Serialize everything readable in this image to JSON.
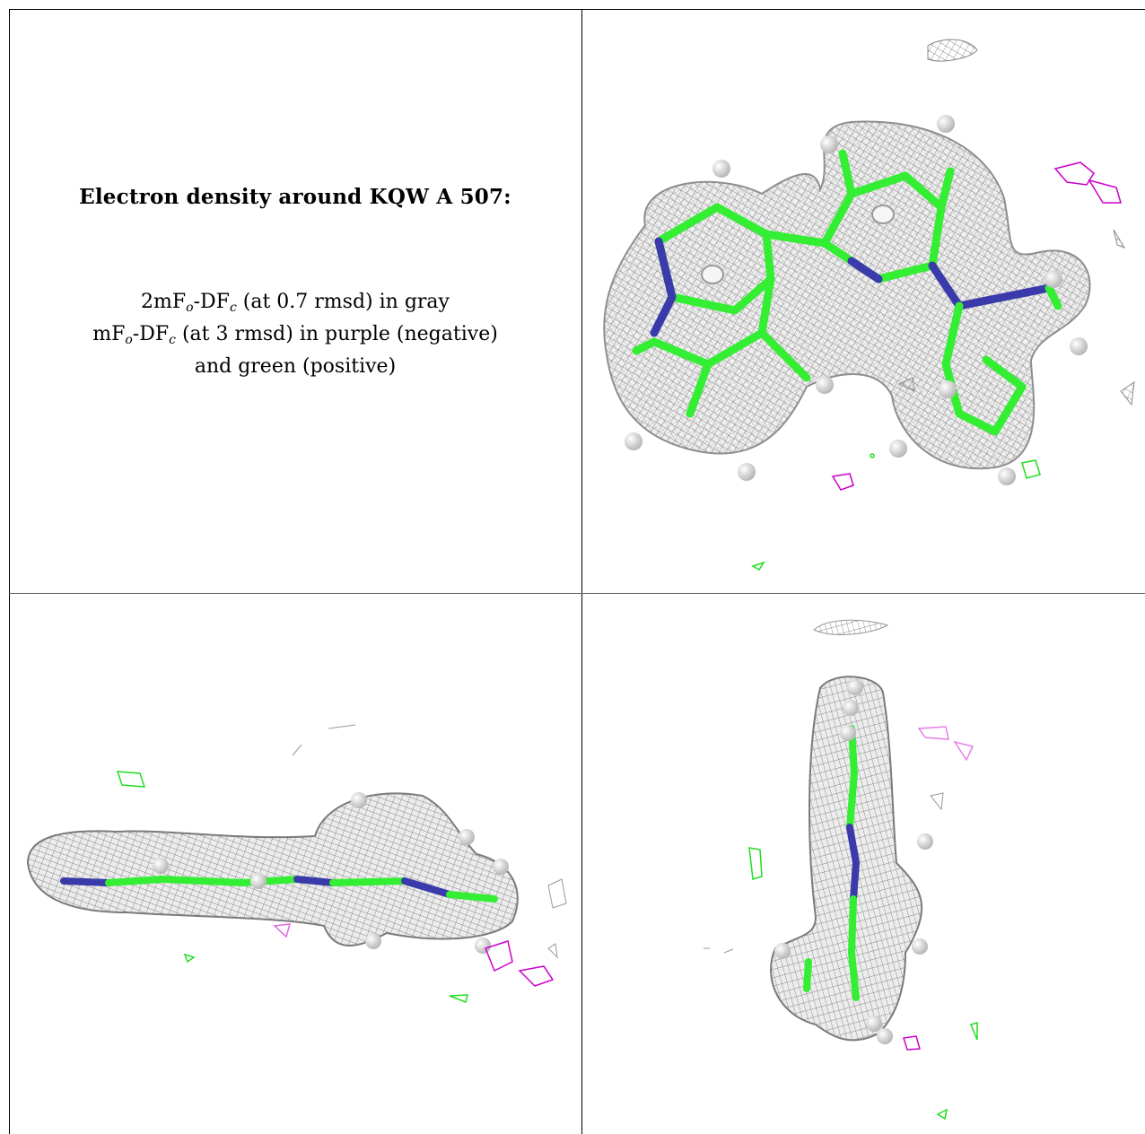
{
  "caption": {
    "title": "Electron density around KQW A 507:",
    "line1": {
      "pre": "2mF",
      "sub1": "o",
      "mid": "-DF",
      "sub2": "c",
      "post": " (at 0.7 rmsd) in gray"
    },
    "line2": {
      "pre": "mF",
      "sub1": "o",
      "mid": "-DF",
      "sub2": "c",
      "post": " (at 3 rmsd) in purple (negative)"
    },
    "line3": "and green (positive)"
  },
  "colors": {
    "mesh_gray": "#9a9a9a",
    "carbon_green": "#33ee33",
    "nitrogen_blue": "#3a3aaa",
    "negative_purple": "#cc00cc",
    "positive_green": "#22dd22",
    "hydrogen_white": "#e6e6e6"
  },
  "panels": [
    {
      "view": "top"
    },
    {
      "view": "side"
    },
    {
      "view": "edge"
    }
  ]
}
